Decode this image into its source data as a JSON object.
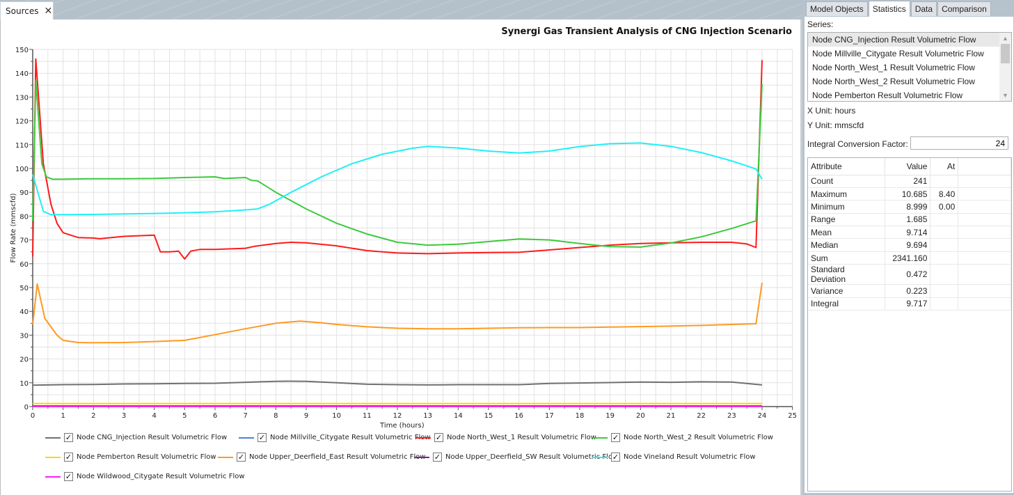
{
  "document_tab": {
    "label": "Sources",
    "close_icon": "close-icon"
  },
  "chart_title": "Synergi Gas Transient Analysis of CNG Injection Scenario",
  "right_tabs": [
    {
      "label": "Model Objects",
      "active": false
    },
    {
      "label": "Statistics",
      "active": true
    },
    {
      "label": "Data",
      "active": false
    },
    {
      "label": "Comparison",
      "active": false
    }
  ],
  "statistics": {
    "series_label": "Series:",
    "series_list": [
      "Node CNG_Injection Result Volumetric Flow",
      "Node Millville_Citygate Result Volumetric Flow",
      "Node North_West_1 Result Volumetric Flow",
      "Node North_West_2 Result Volumetric Flow",
      "Node Pemberton Result Volumetric Flow"
    ],
    "selected_series_index": 0,
    "x_unit": "X Unit: hours",
    "y_unit": "Y Unit: mmscfd",
    "integral_conversion_factor_label": "Integral Conversion Factor:",
    "integral_conversion_factor_value": "24",
    "table": {
      "headers": [
        "Attribute",
        "Value",
        "At"
      ],
      "rows": [
        [
          "Count",
          "241",
          ""
        ],
        [
          "Maximum",
          "10.685",
          "8.40"
        ],
        [
          "Minimum",
          "8.999",
          "0.00"
        ],
        [
          "Range",
          "1.685",
          ""
        ],
        [
          "Mean",
          "9.714",
          ""
        ],
        [
          "Median",
          "9.694",
          ""
        ],
        [
          "Sum",
          "2341.160",
          ""
        ],
        [
          "Standard Deviation",
          "0.472",
          ""
        ],
        [
          "Variance",
          "0.223",
          ""
        ],
        [
          "Integral",
          "9.717",
          ""
        ]
      ]
    }
  },
  "chart_data": {
    "type": "line",
    "title": "Synergi Gas Transient Analysis of CNG Injection Scenario",
    "xlabel": "Time (hours)",
    "ylabel": "Flow Rate (mmscfd)",
    "xlim": [
      0,
      25
    ],
    "ylim": [
      0,
      150
    ],
    "x_ticks": [
      0,
      1,
      2,
      3,
      4,
      5,
      6,
      7,
      8,
      9,
      10,
      11,
      12,
      13,
      14,
      15,
      16,
      17,
      18,
      19,
      20,
      21,
      22,
      23,
      24,
      25
    ],
    "y_ticks": [
      0,
      10,
      20,
      30,
      40,
      50,
      60,
      70,
      80,
      90,
      100,
      110,
      120,
      130,
      140,
      150
    ],
    "grid": true,
    "legend_position": "bottom",
    "series": [
      {
        "name": "Node CNG_Injection Result Volumetric Flow",
        "color": "#707070",
        "checked": true,
        "points": [
          [
            0,
            9.0
          ],
          [
            1,
            9.2
          ],
          [
            2,
            9.3
          ],
          [
            3,
            9.5
          ],
          [
            4,
            9.6
          ],
          [
            5,
            9.7
          ],
          [
            6,
            9.8
          ],
          [
            7,
            10.2
          ],
          [
            8,
            10.6
          ],
          [
            8.4,
            10.685
          ],
          [
            9,
            10.6
          ],
          [
            10,
            10.0
          ],
          [
            11,
            9.4
          ],
          [
            12,
            9.2
          ],
          [
            13,
            9.1
          ],
          [
            14,
            9.2
          ],
          [
            15,
            9.2
          ],
          [
            16,
            9.2
          ],
          [
            17,
            9.7
          ],
          [
            18,
            9.9
          ],
          [
            19,
            10.1
          ],
          [
            20,
            10.3
          ],
          [
            21,
            10.2
          ],
          [
            22,
            10.4
          ],
          [
            23,
            10.3
          ],
          [
            24,
            9.1
          ]
        ]
      },
      {
        "name": "Node Millville_Citygate Result Volumetric Flow",
        "color": "#4f7fe0",
        "checked": true,
        "points": [
          [
            0,
            0.3
          ],
          [
            24,
            0.3
          ]
        ]
      },
      {
        "name": "Node North_West_1 Result Volumetric Flow",
        "color": "#ff1a1a",
        "checked": true,
        "points": [
          [
            0,
            63
          ],
          [
            0.1,
            146
          ],
          [
            0.35,
            102
          ],
          [
            0.6,
            85
          ],
          [
            0.8,
            77
          ],
          [
            1,
            73
          ],
          [
            1.5,
            71
          ],
          [
            2,
            70.8
          ],
          [
            2.2,
            70.5
          ],
          [
            3,
            71.5
          ],
          [
            4,
            72
          ],
          [
            4.2,
            65
          ],
          [
            4.5,
            65
          ],
          [
            4.8,
            65.3
          ],
          [
            5,
            62
          ],
          [
            5.2,
            65.3
          ],
          [
            5.5,
            66
          ],
          [
            6,
            66
          ],
          [
            7,
            66.5
          ],
          [
            7.3,
            67.3
          ],
          [
            8,
            68.5
          ],
          [
            8.5,
            69
          ],
          [
            9,
            68.8
          ],
          [
            10,
            67.5
          ],
          [
            11,
            65.5
          ],
          [
            12,
            64.5
          ],
          [
            13,
            64.2
          ],
          [
            14,
            64.5
          ],
          [
            15,
            64.7
          ],
          [
            16,
            64.8
          ],
          [
            17,
            65.8
          ],
          [
            18,
            66.8
          ],
          [
            19,
            67.8
          ],
          [
            20,
            68.5
          ],
          [
            21,
            68.8
          ],
          [
            22,
            69
          ],
          [
            23,
            69
          ],
          [
            23.5,
            68.3
          ],
          [
            23.8,
            66.8
          ],
          [
            24,
            145.5
          ]
        ]
      },
      {
        "name": "Node North_West_2 Result Volumetric Flow",
        "color": "#3dc93d",
        "checked": true,
        "points": [
          [
            0,
            78
          ],
          [
            0.1,
            137
          ],
          [
            0.3,
            102
          ],
          [
            0.45,
            96.5
          ],
          [
            0.65,
            95.5
          ],
          [
            1,
            95.5
          ],
          [
            2,
            95.7
          ],
          [
            3,
            95.7
          ],
          [
            4,
            95.8
          ],
          [
            5,
            96.2
          ],
          [
            6,
            96.5
          ],
          [
            6.3,
            95.8
          ],
          [
            7,
            96.2
          ],
          [
            7.2,
            95
          ],
          [
            7.4,
            94.8
          ],
          [
            8,
            90
          ],
          [
            9,
            83
          ],
          [
            10,
            77
          ],
          [
            11,
            72.5
          ],
          [
            12,
            69
          ],
          [
            13,
            67.8
          ],
          [
            14,
            68.2
          ],
          [
            15,
            69.3
          ],
          [
            16,
            70.4
          ],
          [
            17,
            70
          ],
          [
            18,
            68.5
          ],
          [
            19,
            67.2
          ],
          [
            20,
            67
          ],
          [
            21,
            68.7
          ],
          [
            22,
            71.3
          ],
          [
            23,
            74.8
          ],
          [
            23.8,
            78
          ],
          [
            24,
            135.5
          ]
        ]
      },
      {
        "name": "Node Pemberton Result Volumetric Flow",
        "color": "#ffd500",
        "checked": true,
        "points": [
          [
            0,
            1.3
          ],
          [
            24,
            1.3
          ]
        ]
      },
      {
        "name": "Node Upper_Deerfield_East Result Volumetric Flow",
        "color": "#ff9922",
        "checked": true,
        "points": [
          [
            0,
            34.5
          ],
          [
            0.15,
            51.5
          ],
          [
            0.4,
            37
          ],
          [
            0.8,
            30
          ],
          [
            1,
            27.8
          ],
          [
            1.5,
            26.9
          ],
          [
            2,
            26.8
          ],
          [
            3,
            26.9
          ],
          [
            4,
            27.3
          ],
          [
            5,
            27.8
          ],
          [
            6,
            30.2
          ],
          [
            7,
            32.7
          ],
          [
            8,
            35
          ],
          [
            8.8,
            35.9
          ],
          [
            9.5,
            35.2
          ],
          [
            10,
            34.5
          ],
          [
            11,
            33.5
          ],
          [
            12,
            32.9
          ],
          [
            13,
            32.7
          ],
          [
            14,
            32.7
          ],
          [
            15,
            32.9
          ],
          [
            16,
            33.1
          ],
          [
            17,
            33.2
          ],
          [
            18,
            33.2
          ],
          [
            19,
            33.4
          ],
          [
            20,
            33.6
          ],
          [
            21,
            33.8
          ],
          [
            22,
            34.1
          ],
          [
            23,
            34.5
          ],
          [
            23.8,
            34.8
          ],
          [
            24,
            52
          ]
        ]
      },
      {
        "name": "Node Upper_Deerfield_SW Result Volumetric Flow",
        "color": "#8b1a9b",
        "checked": true,
        "points": [
          [
            0,
            0.2
          ],
          [
            24,
            0.2
          ]
        ]
      },
      {
        "name": "Node Vineland Result Volumetric Flow",
        "color": "#1ff0f7",
        "checked": true,
        "points": [
          [
            0,
            97.5
          ],
          [
            0.35,
            82
          ],
          [
            0.6,
            80.6
          ],
          [
            1,
            80.6
          ],
          [
            2,
            80.7
          ],
          [
            3,
            80.9
          ],
          [
            4,
            81.1
          ],
          [
            5,
            81.4
          ],
          [
            6,
            81.8
          ],
          [
            7,
            82.6
          ],
          [
            7.4,
            83
          ],
          [
            7.8,
            85
          ],
          [
            8.5,
            90
          ],
          [
            9.5,
            96.5
          ],
          [
            10.5,
            102
          ],
          [
            11.5,
            106
          ],
          [
            12.5,
            108.5
          ],
          [
            13,
            109.3
          ],
          [
            14,
            108.6
          ],
          [
            15,
            107.3
          ],
          [
            16,
            106.5
          ],
          [
            17,
            107.3
          ],
          [
            18,
            109.2
          ],
          [
            19,
            110.4
          ],
          [
            20,
            110.7
          ],
          [
            21,
            109.3
          ],
          [
            22,
            106.7
          ],
          [
            23,
            103.2
          ],
          [
            23.8,
            99.8
          ],
          [
            24,
            95.5
          ]
        ]
      },
      {
        "name": "Node Wildwood_Citygate Result Volumetric Flow",
        "color": "#ff1aff",
        "checked": true,
        "points": [
          [
            0,
            0.1
          ],
          [
            24,
            0.1
          ]
        ]
      }
    ]
  }
}
